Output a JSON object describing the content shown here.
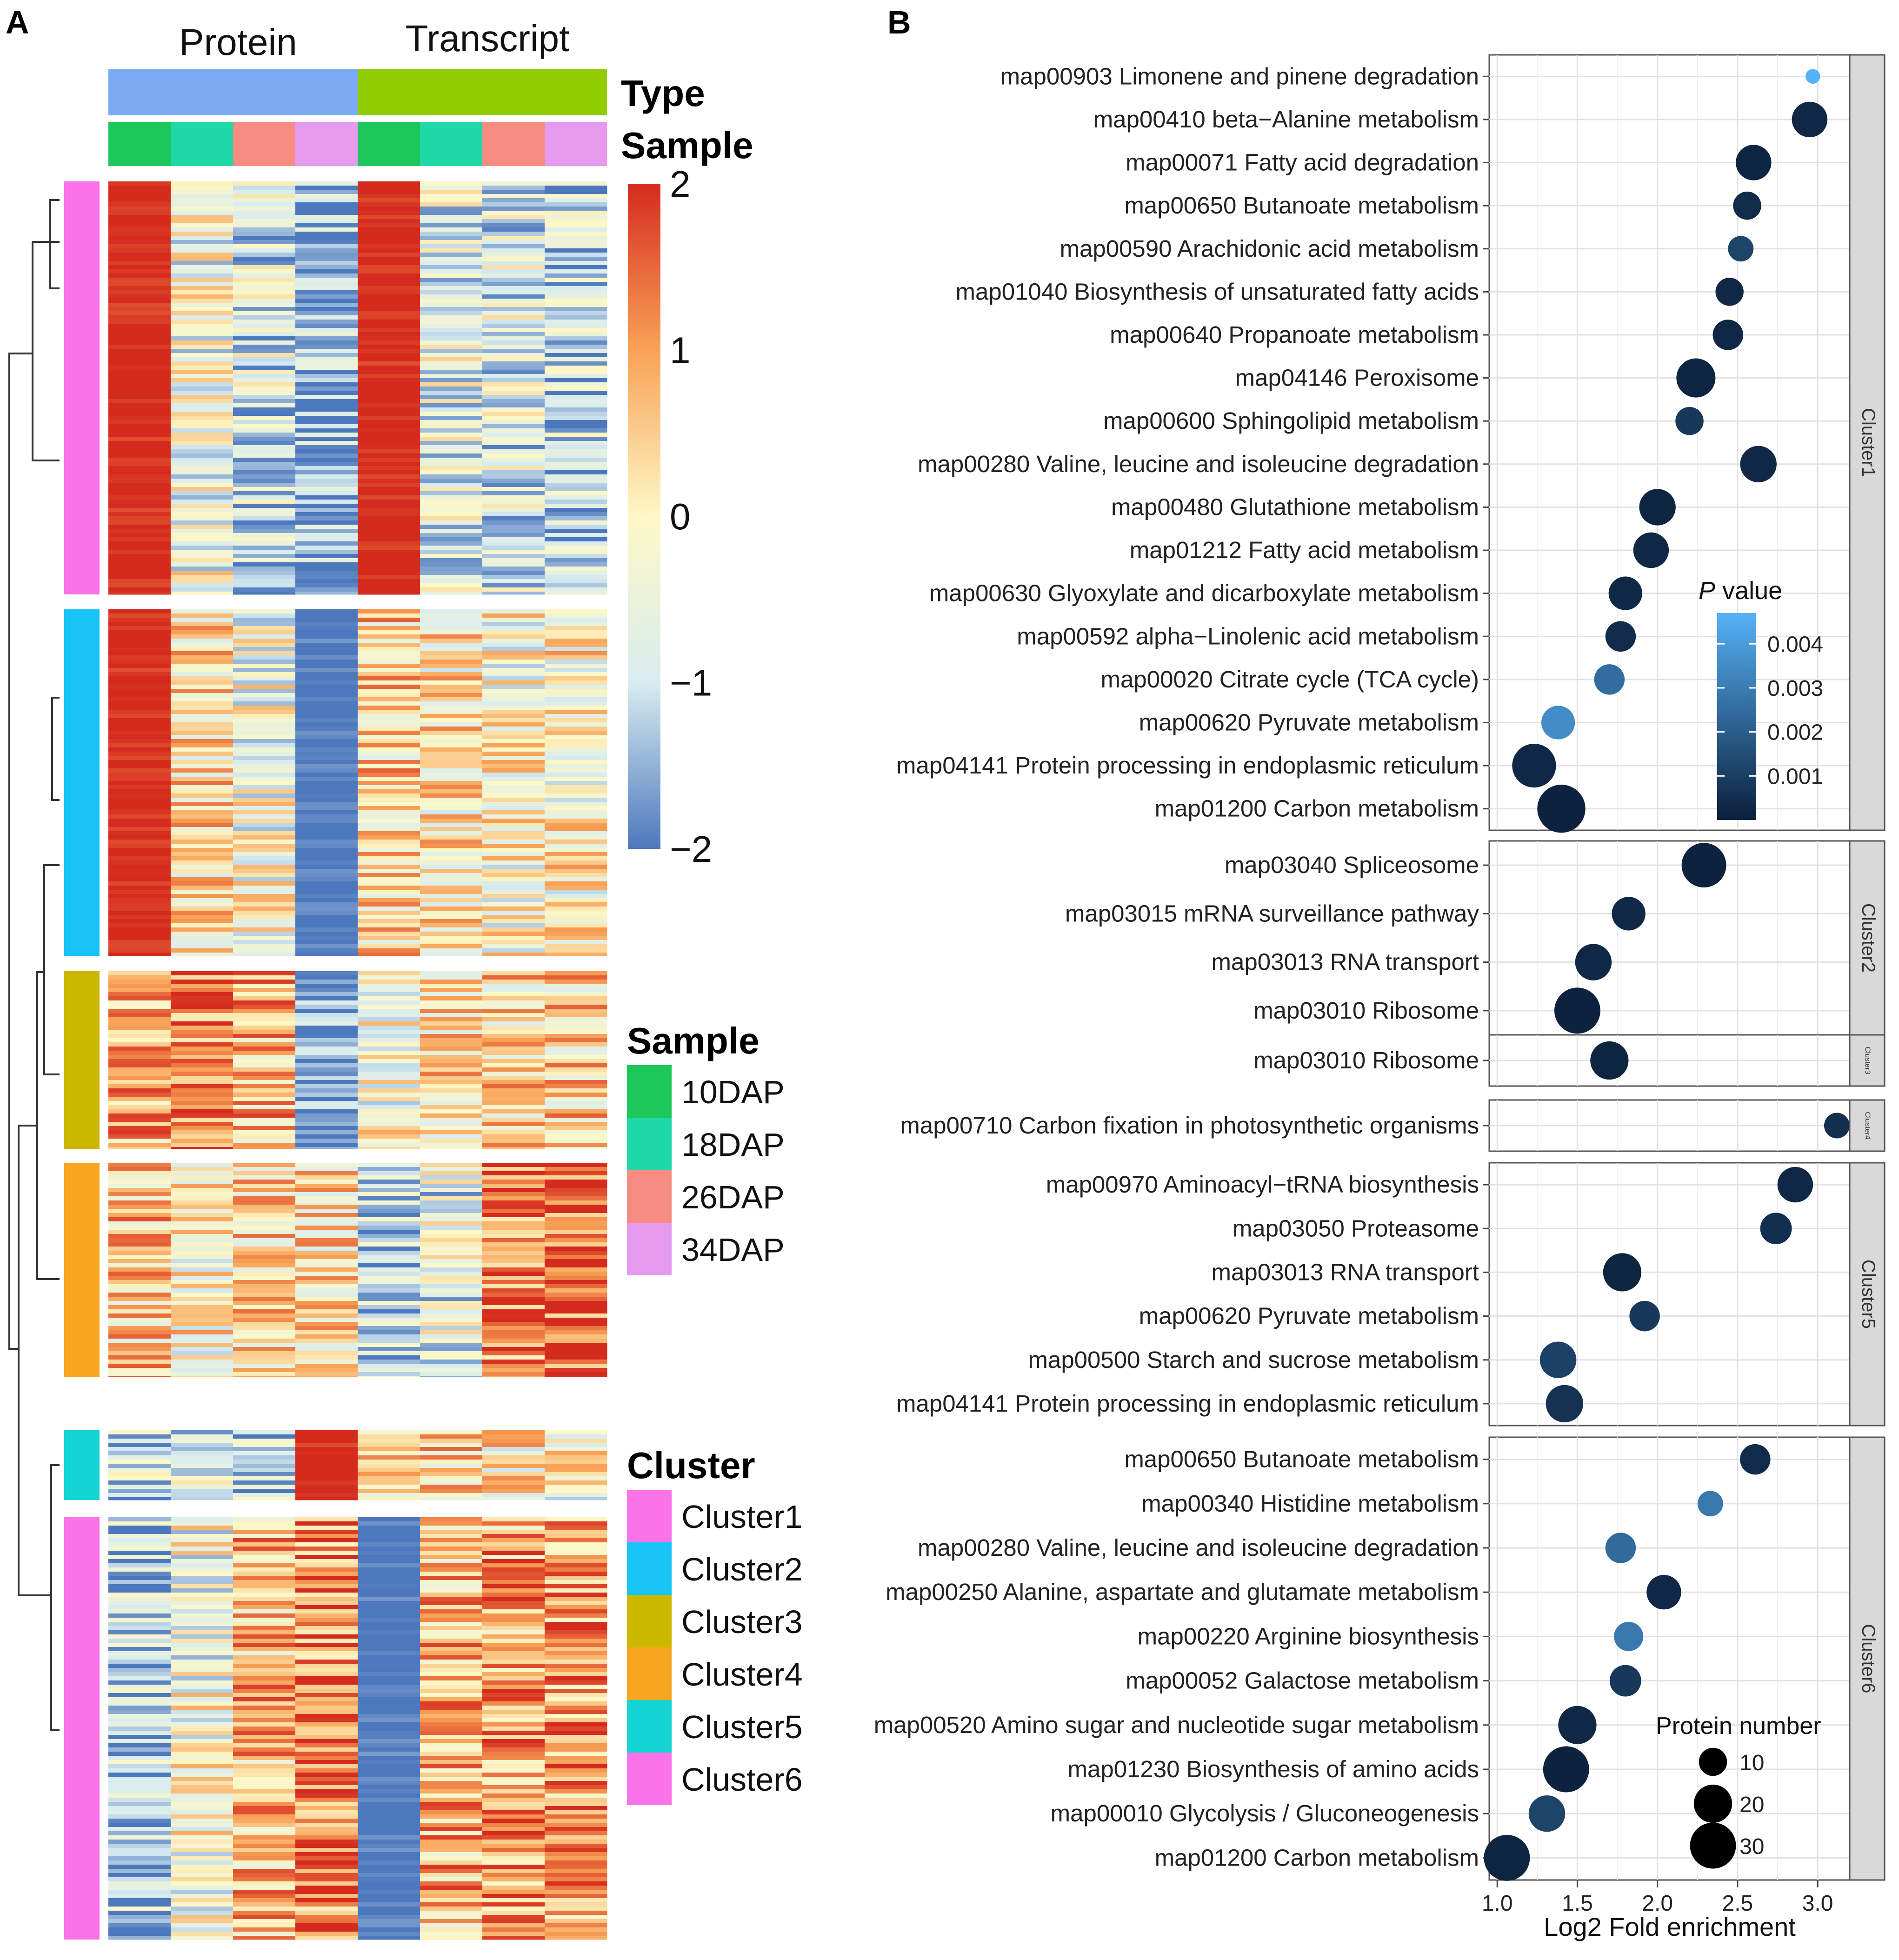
{
  "panel_labels": {
    "a": "A",
    "b": "B"
  },
  "chart_data": [
    {
      "type": "heatmap",
      "panel": "A",
      "column_groups": [
        {
          "label": "Protein",
          "color": "#7aaaf2"
        },
        {
          "label": "Transcript",
          "color": "#90cc00"
        }
      ],
      "annotation_labels": {
        "type": "Type",
        "sample": "Sample"
      },
      "samples": [
        "10DAP",
        "18DAP",
        "26DAP",
        "34DAP"
      ],
      "sample_colors": [
        "#1ec75a",
        "#1ed8a8",
        "#f78c82",
        "#e59af0"
      ],
      "color_scale": {
        "ticks": [
          "2",
          "1",
          "0",
          "−1",
          "−2"
        ],
        "range": [
          -2,
          2
        ],
        "stops": [
          "#d52b1e",
          "#f9a257",
          "#fdf8c6",
          "#d8ecf0",
          "#4d78bd"
        ]
      },
      "sample_legend_title": "Sample",
      "cluster_legend_title": "Cluster",
      "clusters": [
        {
          "name": "Cluster1",
          "color": "#fb73e8",
          "pattern": [
            2.0,
            -0.4,
            -0.9,
            -1.6,
            2.0,
            -0.6,
            -0.8,
            -1.1
          ]
        },
        {
          "name": "Cluster2",
          "color": "#18c4f6",
          "pattern": [
            2.0,
            0.3,
            -0.3,
            -2.0,
            0.4,
            0.1,
            -0.1,
            0.0
          ]
        },
        {
          "name": "Cluster3",
          "color": "#cdb800",
          "pattern": [
            0.9,
            1.3,
            0.7,
            -1.8,
            -0.2,
            0.2,
            0.3,
            0.4
          ]
        },
        {
          "name": "Cluster4",
          "color": "#f8a520",
          "pattern": [
            0.5,
            0.0,
            0.3,
            0.2,
            -1.2,
            -0.7,
            1.2,
            1.4
          ]
        },
        {
          "name": "Cluster5",
          "color": "#14d4d4",
          "pattern": [
            -1.0,
            -0.9,
            -1.2,
            2.0,
            0.6,
            0.4,
            0.1,
            -0.1
          ]
        },
        {
          "name": "Cluster6",
          "color": "#fb73e8",
          "pattern": [
            -1.3,
            -0.3,
            0.7,
            1.2,
            -2.0,
            0.7,
            0.9,
            1.0
          ]
        }
      ]
    },
    {
      "type": "scatter",
      "panel": "B",
      "xlabel": "Log2 Fold enrichment",
      "xlim": [
        0.95,
        3.2
      ],
      "xticks": [
        "1.0",
        "1.5",
        "2.0",
        "2.5",
        "3.0"
      ],
      "xtick_values": [
        1.0,
        1.5,
        2.0,
        2.5,
        3.0
      ],
      "color_legend": {
        "title_italic": "P",
        "title_rest": " value",
        "ticks": [
          "0.004",
          "0.003",
          "0.002",
          "0.001"
        ],
        "tick_values": [
          0.004,
          0.003,
          0.002,
          0.001
        ],
        "range": [
          0,
          0.0047
        ],
        "low_color": "#0b1f3a",
        "high_color": "#56b1f7"
      },
      "size_legend": {
        "title": "Protein number",
        "labels": [
          "10",
          "20",
          "30"
        ],
        "values": [
          10,
          20,
          30
        ]
      },
      "facets": [
        {
          "name": "Cluster1",
          "points": [
            {
              "label": "map00903 Limonene and pinene degradation",
              "x": 2.97,
              "p": 0.0047,
              "n": 2
            },
            {
              "label": "map00410 beta−Alanine metabolism",
              "x": 2.95,
              "p": 0.0003,
              "n": 17
            },
            {
              "label": "map00071 Fatty acid degradation",
              "x": 2.6,
              "p": 0.0002,
              "n": 17
            },
            {
              "label": "map00650 Butanoate metabolism",
              "x": 2.56,
              "p": 0.0004,
              "n": 10
            },
            {
              "label": "map00590 Arachidonic acid metabolism",
              "x": 2.52,
              "p": 0.0012,
              "n": 8
            },
            {
              "label": "map01040 Biosynthesis of unsaturated fatty acids",
              "x": 2.45,
              "p": 0.0003,
              "n": 10
            },
            {
              "label": "map00640 Propanoate metabolism",
              "x": 2.44,
              "p": 0.0003,
              "n": 12
            },
            {
              "label": "map04146 Peroxisome",
              "x": 2.24,
              "p": 0.0002,
              "n": 21
            },
            {
              "label": "map00600 Sphingolipid metabolism",
              "x": 2.2,
              "p": 0.0008,
              "n": 10
            },
            {
              "label": "map00280 Valine, leucine and isoleucine degradation",
              "x": 2.63,
              "p": 0.0003,
              "n": 18
            },
            {
              "label": "map00480 Glutathione metabolism",
              "x": 2.0,
              "p": 0.0002,
              "n": 18
            },
            {
              "label": "map01212 Fatty acid metabolism",
              "x": 1.96,
              "p": 0.0003,
              "n": 17
            },
            {
              "label": "map00630 Glyoxylate and dicarboxylate metabolism",
              "x": 1.8,
              "p": 0.0003,
              "n": 15
            },
            {
              "label": "map00592 alpha−Linolenic acid metabolism",
              "x": 1.77,
              "p": 0.0004,
              "n": 12
            },
            {
              "label": "map00020 Citrate cycle (TCA cycle)",
              "x": 1.7,
              "p": 0.0025,
              "n": 12
            },
            {
              "label": "map00620 Pyruvate metabolism",
              "x": 1.38,
              "p": 0.0035,
              "n": 15
            },
            {
              "label": "map04141 Protein processing in endoplasmic reticulum",
              "x": 1.23,
              "p": 0.0003,
              "n": 27
            },
            {
              "label": "map01200 Carbon metabolism",
              "x": 1.4,
              "p": 0.0001,
              "n": 33
            }
          ]
        },
        {
          "name": "Cluster2",
          "points": [
            {
              "label": "map03040 Spliceosome",
              "x": 2.29,
              "p": 0.0001,
              "n": 28
            },
            {
              "label": "map03015 mRNA surveillance pathway",
              "x": 1.82,
              "p": 0.0003,
              "n": 15
            },
            {
              "label": "map03013 RNA transport",
              "x": 1.6,
              "p": 0.0003,
              "n": 18
            },
            {
              "label": "map03010 Ribosome",
              "x": 1.5,
              "p": 0.0001,
              "n": 30
            }
          ]
        },
        {
          "name": "Cluster3",
          "points": [
            {
              "label": "map03010 Ribosome",
              "x": 1.7,
              "p": 0.0002,
              "n": 20
            }
          ]
        },
        {
          "name": "Cluster4",
          "points": [
            {
              "label": "map00710 Carbon fixation in photosynthetic organisms",
              "x": 3.12,
              "p": 0.0005,
              "n": 8
            }
          ]
        },
        {
          "name": "Cluster5",
          "points": [
            {
              "label": "map00970 Aminoacyl−tRNA biosynthesis",
              "x": 2.86,
              "p": 0.0003,
              "n": 17
            },
            {
              "label": "map03050 Proteasome",
              "x": 2.74,
              "p": 0.0005,
              "n": 13
            },
            {
              "label": "map03013 RNA transport",
              "x": 1.78,
              "p": 0.0002,
              "n": 20
            },
            {
              "label": "map00620 Pyruvate metabolism",
              "x": 1.92,
              "p": 0.0008,
              "n": 12
            },
            {
              "label": "map00500 Starch and sucrose metabolism",
              "x": 1.38,
              "p": 0.0011,
              "n": 18
            },
            {
              "label": "map04141 Protein processing in endoplasmic reticulum",
              "x": 1.42,
              "p": 0.0006,
              "n": 19
            }
          ]
        },
        {
          "name": "Cluster6",
          "points": [
            {
              "label": "map00650 Butanoate metabolism",
              "x": 2.61,
              "p": 0.0004,
              "n": 12
            },
            {
              "label": "map00340 Histidine metabolism",
              "x": 2.33,
              "p": 0.0029,
              "n": 8
            },
            {
              "label": "map00280 Valine, leucine and isoleucine degradation",
              "x": 1.77,
              "p": 0.0024,
              "n": 12
            },
            {
              "label": "map00250 Alanine, aspartate and glutamate metabolism",
              "x": 2.04,
              "p": 0.0003,
              "n": 16
            },
            {
              "label": "map00220 Arginine biosynthesis",
              "x": 1.82,
              "p": 0.0029,
              "n": 11
            },
            {
              "label": "map00052 Galactose metabolism",
              "x": 1.8,
              "p": 0.0008,
              "n": 13
            },
            {
              "label": "map00520 Amino sugar and  nucleotide sugar metabolism",
              "x": 1.5,
              "p": 0.0003,
              "n": 20
            },
            {
              "label": "map01230 Biosynthesis of amino acids",
              "x": 1.43,
              "p": 0.0001,
              "n": 30
            },
            {
              "label": "map00010 Glycolysis / Gluconeogenesis",
              "x": 1.31,
              "p": 0.0012,
              "n": 18
            },
            {
              "label": "map01200 Carbon metabolism",
              "x": 1.06,
              "p": 0.0002,
              "n": 30
            }
          ]
        }
      ]
    }
  ]
}
